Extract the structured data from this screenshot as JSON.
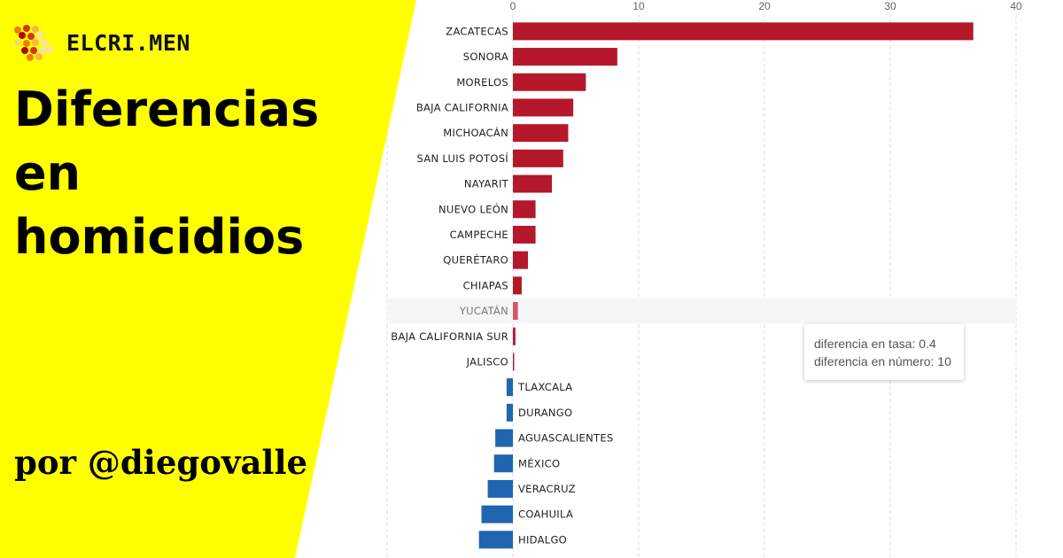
{
  "brand": {
    "name": "ELCRI.MEN"
  },
  "headline": [
    "Diferencias",
    "en",
    "homicidios"
  ],
  "byline": "por @diegovalle",
  "colors": {
    "banner_bg": "#ffff00",
    "positive": "#b5182b",
    "positive_hover": "#d9536a",
    "negative": "#2065b0",
    "grid": "#dddddd",
    "logo_dots": [
      "#fde0a8",
      "#fbb44a",
      "#f57c00",
      "#d7301f",
      "#b30000",
      "#ffd966"
    ]
  },
  "tooltip": {
    "line1": "diferencia en tasa: 0.4",
    "line2": "diferencia en número: 10"
  },
  "chart_data": {
    "type": "bar",
    "orientation": "horizontal",
    "xlim": [
      -10,
      40
    ],
    "xticks": [
      -10,
      0,
      10,
      20,
      30,
      40
    ],
    "grid": true,
    "highlighted": "YUCATÁN",
    "categories": [
      "ZACATECAS",
      "SONORA",
      "MORELOS",
      "BAJA CALIFORNIA",
      "MICHOACÁN",
      "SAN LUIS POTOSÍ",
      "NAYARIT",
      "NUEVO LEÓN",
      "CAMPECHE",
      "QUERÉTARO",
      "CHIAPAS",
      "YUCATÁN",
      "BAJA CALIFORNIA SUR",
      "JALISCO",
      "TLAXCALA",
      "DURANGO",
      "AGUASCALIENTES",
      "MÉXICO",
      "VERACRUZ",
      "COAHUILA",
      "HIDALGO"
    ],
    "values": [
      36.6,
      8.3,
      5.8,
      4.8,
      4.4,
      4.0,
      3.1,
      1.8,
      1.8,
      1.2,
      0.7,
      0.4,
      0.2,
      0.1,
      -0.5,
      -0.5,
      -1.4,
      -1.5,
      -2.0,
      -2.5,
      -2.7
    ]
  }
}
